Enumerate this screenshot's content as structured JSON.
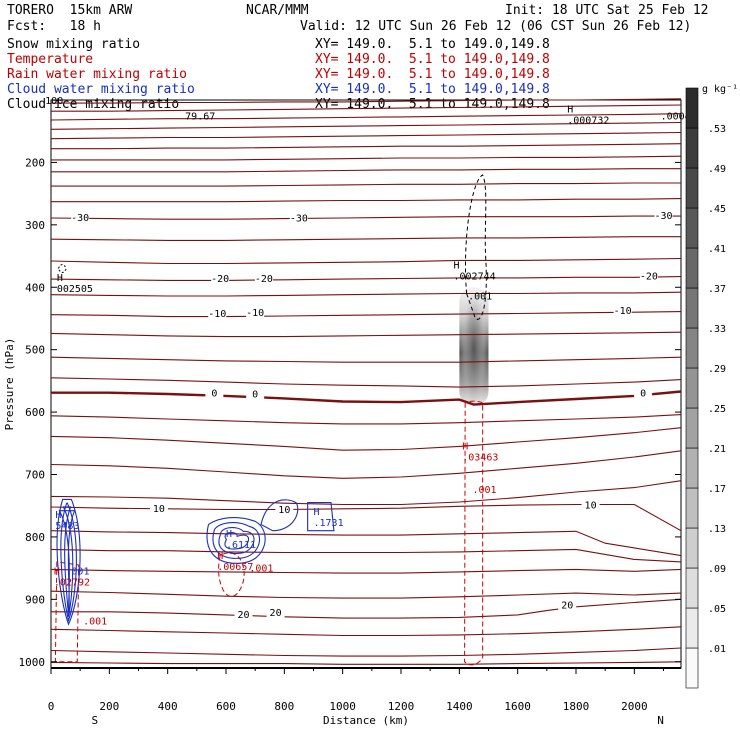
{
  "header": {
    "model": "TORERO  15km ARW",
    "center": "NCAR/MMM",
    "init": "Init: 18 UTC Sat 25 Feb 12",
    "fcst": "Fcst:   18 h",
    "valid": "Valid: 12 UTC Sun 26 Feb 12 (06 CST Sun 26 Feb 12)",
    "fields": [
      {
        "name": "Snow mixing ratio",
        "xy": "XY= 149.0.  5.1 to 149.0,149.8",
        "color": "#000000"
      },
      {
        "name": "Temperature",
        "xy": "XY= 149.0.  5.1 to 149.0,149.8",
        "color": "#c00000"
      },
      {
        "name": "Rain water mixing ratio",
        "xy": "XY= 149.0.  5.1 to 149.0,149.8",
        "color": "#c00000"
      },
      {
        "name": "Cloud water mixing ratio",
        "xy": "XY= 149.0.  5.1 to 149.0,149.8",
        "color": "#1a2fc0"
      },
      {
        "name": "Cloud ice mixing ratio",
        "xy": "XY= 149.0.  5.1 to 149.0,149.8",
        "color": "#000000"
      }
    ]
  },
  "chart_data": {
    "type": "contour-cross-section",
    "xlabel": "Distance (km)",
    "ylabel": "Pressure (hPa)",
    "xlim": [
      0,
      2160
    ],
    "ylim": [
      1010,
      100
    ],
    "x_ticks": [
      0,
      200,
      400,
      600,
      800,
      1000,
      1200,
      1400,
      1600,
      1800,
      2000
    ],
    "y_ticks": [
      200,
      300,
      400,
      500,
      600,
      700,
      800,
      900,
      1000
    ],
    "x_end_labels": {
      "left": "S",
      "right": "N"
    },
    "colorbar": {
      "units": "g kg⁻¹",
      "levels": [
        ".01",
        ".05",
        ".09",
        ".13",
        ".17",
        ".21",
        ".25",
        ".29",
        ".33",
        ".37",
        ".41",
        ".45",
        ".49",
        ".53"
      ]
    },
    "temperature_contours": [
      {
        "x": [
          0,
          200,
          400,
          600,
          800,
          1000,
          1200,
          1400,
          1600,
          1800,
          2000,
          2160
        ],
        "p": [
          105,
          105,
          104,
          104,
          103,
          103,
          102,
          101,
          100,
          100,
          99,
          98
        ]
      },
      {
        "x": [
          0,
          200,
          400,
          600,
          800,
          1000,
          1200,
          1400,
          1600,
          1800,
          2000,
          2160
        ],
        "p": [
          118,
          118,
          117,
          116,
          115,
          114,
          113,
          112,
          111,
          110,
          109,
          108
        ]
      },
      {
        "x": [
          0,
          200,
          400,
          600,
          800,
          1000,
          1200,
          1400,
          1600,
          1800,
          2000,
          2160
        ],
        "p": [
          132,
          131,
          130,
          130,
          129,
          128,
          127,
          126,
          125,
          124,
          123,
          122
        ]
      },
      {
        "x": [
          0,
          200,
          400,
          600,
          800,
          1000,
          1200,
          1400,
          1600,
          1800,
          2000,
          2160
        ],
        "p": [
          147,
          146,
          145,
          144,
          143,
          142,
          141,
          140,
          139,
          138,
          137,
          136
        ]
      },
      {
        "x": [
          0,
          200,
          400,
          600,
          800,
          1000,
          1200,
          1400,
          1600,
          1800,
          2000,
          2160
        ],
        "p": [
          162,
          161,
          160,
          160,
          159,
          158,
          157,
          156,
          155,
          154,
          153,
          152
        ]
      },
      {
        "x": [
          0,
          200,
          400,
          600,
          800,
          1000,
          1200,
          1400,
          1600,
          1800,
          2000,
          2160
        ],
        "p": [
          178,
          178,
          177,
          177,
          176,
          175,
          174,
          174,
          173,
          172,
          171,
          170
        ]
      },
      {
        "x": [
          0,
          200,
          400,
          600,
          800,
          1000,
          1200,
          1400,
          1600,
          1800,
          2000,
          2160
        ],
        "p": [
          196,
          196,
          196,
          196,
          195,
          194,
          193,
          193,
          192,
          192,
          191,
          190
        ]
      },
      {
        "x": [
          0,
          200,
          400,
          600,
          800,
          1000,
          1200,
          1400,
          1600,
          1800,
          2000,
          2160
        ],
        "p": [
          215,
          215,
          215,
          215,
          214,
          213,
          212,
          212,
          211,
          211,
          210,
          210
        ]
      },
      {
        "x": [
          0,
          200,
          400,
          600,
          800,
          1000,
          1200,
          1400,
          1600,
          1800,
          2000,
          2160
        ],
        "p": [
          238,
          238,
          238,
          238,
          237,
          236,
          235,
          235,
          234,
          234,
          233,
          233
        ]
      },
      {
        "x": [
          0,
          200,
          400,
          600,
          800,
          1000,
          1200,
          1400,
          1600,
          1800,
          2000,
          2160
        ],
        "p": [
          263,
          263,
          263,
          263,
          262,
          261,
          261,
          260,
          260,
          259,
          259,
          258
        ]
      },
      {
        "x": [
          0,
          200,
          400,
          600,
          800,
          1000,
          1200,
          1400,
          1600,
          1800,
          2000,
          2160
        ],
        "p": [
          289,
          290,
          291,
          291,
          290,
          289,
          288,
          287,
          287,
          287,
          286,
          286
        ],
        "label": "-30",
        "label_at": [
          [
            100,
            289
          ],
          [
            850,
            290
          ],
          [
            2100,
            286
          ]
        ]
      },
      {
        "x": [
          0,
          200,
          400,
          600,
          800,
          1000,
          1200,
          1400,
          1600,
          1800,
          2000,
          2160
        ],
        "p": [
          323,
          324,
          325,
          325,
          324,
          323,
          322,
          321,
          321,
          320,
          319,
          319
        ]
      },
      {
        "x": [
          0,
          200,
          400,
          600,
          800,
          1000,
          1200,
          1400,
          1600,
          1800,
          2000,
          2160
        ],
        "p": [
          358,
          360,
          362,
          362,
          361,
          360,
          359,
          357,
          357,
          356,
          355,
          354
        ]
      },
      {
        "x": [
          0,
          200,
          400,
          600,
          800,
          1000,
          1200,
          1400,
          1600,
          1800,
          2000,
          2160
        ],
        "p": [
          387,
          388,
          389,
          389,
          388,
          387,
          386,
          385,
          385,
          384,
          384,
          383
        ],
        "label": "-20",
        "label_at": [
          [
            580,
            387
          ],
          [
            730,
            387
          ],
          [
            2050,
            383
          ]
        ]
      },
      {
        "x": [
          0,
          200,
          400,
          600,
          800,
          1000,
          1200,
          1400,
          1600,
          1800,
          2000,
          2160
        ],
        "p": [
          412,
          413,
          414,
          414,
          413,
          412,
          411,
          410,
          410,
          409,
          409,
          408
        ]
      },
      {
        "x": [
          0,
          200,
          400,
          600,
          800,
          1000,
          1200,
          1400,
          1600,
          1800,
          2000,
          2160
        ],
        "p": [
          444,
          445,
          447,
          447,
          446,
          445,
          444,
          443,
          442,
          441,
          440,
          439
        ],
        "label": "-10",
        "label_at": [
          [
            570,
            443
          ],
          [
            700,
            441
          ],
          [
            1960,
            438
          ]
        ]
      },
      {
        "x": [
          0,
          200,
          400,
          600,
          800,
          1000,
          1200,
          1400,
          1600,
          1800,
          2000,
          2160
        ],
        "p": [
          474,
          476,
          478,
          479,
          479,
          478,
          477,
          476,
          475,
          474,
          473,
          472
        ]
      },
      {
        "x": [
          0,
          200,
          400,
          600,
          800,
          1000,
          1200,
          1400,
          1600,
          1800,
          2000,
          2160
        ],
        "p": [
          512,
          514,
          516,
          518,
          519,
          520,
          520,
          520,
          518,
          516,
          514,
          512
        ]
      },
      {
        "x": [
          0,
          200,
          400,
          600,
          800,
          1000,
          1200,
          1400,
          1600,
          1800,
          2000,
          2160
        ],
        "p": [
          545,
          547,
          549,
          552,
          555,
          557,
          558,
          560,
          558,
          555,
          552,
          548
        ]
      },
      {
        "x": [
          0,
          200,
          400,
          600,
          800,
          1000,
          1200,
          1400,
          1450,
          1600,
          1800,
          2000,
          2160
        ],
        "p": [
          569,
          569,
          571,
          574,
          578,
          583,
          584,
          580,
          588,
          584,
          579,
          574,
          567
        ],
        "label": "0",
        "label_at": [
          [
            560,
            570
          ],
          [
            700,
            572
          ],
          [
            2030,
            570
          ]
        ],
        "bold": true
      },
      {
        "x": [
          0,
          200,
          400,
          600,
          800,
          1000,
          1200,
          1400,
          1600,
          1800,
          2000,
          2160
        ],
        "p": [
          606,
          608,
          611,
          614,
          617,
          619,
          619,
          617,
          614,
          611,
          608,
          604
        ]
      },
      {
        "x": [
          0,
          200,
          400,
          600,
          800,
          1000,
          1200,
          1400,
          1600,
          1800,
          2000,
          2160
        ],
        "p": [
          639,
          641,
          645,
          650,
          655,
          661,
          660,
          655,
          648,
          641,
          633,
          625
        ]
      },
      {
        "x": [
          0,
          200,
          400,
          600,
          800,
          1000,
          1200,
          1400,
          1600,
          1800,
          2000,
          2160
        ],
        "p": [
          684,
          686,
          690,
          696,
          702,
          706,
          704,
          698,
          690,
          682,
          672,
          662
        ]
      },
      {
        "x": [
          0,
          200,
          400,
          600,
          800,
          1000,
          1200,
          1400,
          1600,
          1800,
          2000,
          2160
        ],
        "p": [
          735,
          736,
          738,
          742,
          746,
          748,
          748,
          744,
          737,
          728,
          721,
          710
        ]
      },
      {
        "x": [
          0,
          200,
          400,
          600,
          800,
          1000,
          1200,
          1400,
          1600,
          1800,
          2000,
          2160
        ],
        "p": [
          752,
          754,
          755,
          756,
          756,
          755,
          754,
          751,
          749,
          748,
          748,
          790
        ],
        "label": "10",
        "label_at": [
          [
            370,
            755
          ],
          [
            800,
            757
          ],
          [
            1850,
            750
          ]
        ]
      },
      {
        "x": [
          0,
          200,
          400,
          600,
          800,
          1000,
          1200,
          1400,
          1600,
          1800,
          1900,
          2160
        ],
        "p": [
          790,
          792,
          793,
          795,
          796,
          797,
          797,
          795,
          793,
          791,
          810,
          830
        ]
      },
      {
        "x": [
          0,
          200,
          400,
          600,
          800,
          1000,
          1200,
          1400,
          1600,
          1800,
          2000,
          2160
        ],
        "p": [
          820,
          822,
          822,
          824,
          825,
          825,
          825,
          824,
          822,
          820,
          836,
          840
        ]
      },
      {
        "x": [
          0,
          200,
          400,
          600,
          800,
          1000,
          1200,
          1400,
          1600,
          1800,
          2000,
          2160
        ],
        "p": [
          852,
          854,
          855,
          856,
          857,
          858,
          858,
          856,
          854,
          852,
          855,
          852
        ]
      },
      {
        "x": [
          0,
          200,
          400,
          600,
          800,
          1000,
          1200,
          1400,
          1600,
          1800,
          2000,
          2160
        ],
        "p": [
          887,
          889,
          892,
          895,
          897,
          898,
          898,
          896,
          893,
          890,
          893,
          890
        ]
      },
      {
        "x": [
          0,
          200,
          400,
          600,
          800,
          1000,
          1200,
          1400,
          1600,
          1700,
          1800,
          2000,
          2160
        ],
        "p": [
          920,
          920,
          922,
          925,
          928,
          930,
          930,
          929,
          925,
          918,
          912,
          905,
          900
        ],
        "label": "20",
        "label_at": [
          [
            660,
            925
          ],
          [
            770,
            922
          ],
          [
            1770,
            910
          ]
        ]
      },
      {
        "x": [
          0,
          200,
          400,
          600,
          800,
          1000,
          1200,
          1400,
          1600,
          1800,
          2000,
          2160
        ],
        "p": [
          948,
          950,
          952,
          954,
          956,
          958,
          958,
          957,
          955,
          952,
          948,
          944
        ]
      },
      {
        "x": [
          0,
          200,
          400,
          600,
          800,
          1000,
          1200,
          1400,
          1600,
          1800,
          2000,
          2160
        ],
        "p": [
          982,
          984,
          986,
          988,
          990,
          991,
          991,
          990,
          988,
          985,
          982,
          978
        ]
      },
      {
        "x": [
          0,
          200,
          400,
          600,
          800,
          1000,
          1200,
          1400,
          1600,
          1800,
          2000,
          2160
        ],
        "p": [
          1001,
          1002,
          1003,
          1003,
          1003,
          1004,
          1004,
          1004,
          1003,
          1002,
          1001,
          1000
        ]
      }
    ],
    "rain_contour_labels": [
      {
        "text": ".001",
        "x": 1445,
        "p": 730
      },
      {
        "text": ".001",
        "x": 680,
        "p": 855
      },
      {
        "text": ".001",
        "x": 110,
        "p": 940
      }
    ],
    "snow_contour_labels": [
      {
        "text": ".001",
        "x": 1430,
        "p": 420
      }
    ],
    "maxima": [
      {
        "text": "H",
        "sub": "002505",
        "x": 20,
        "p": 390,
        "color": "#000000"
      },
      {
        "text": "H",
        "sub": ".002744",
        "x": 1380,
        "p": 370,
        "color": "#000000"
      },
      {
        "text": "H",
        "sub": ".000732",
        "x": 1770,
        "p": 120,
        "color": "#000000"
      },
      {
        "text": "H",
        "sub": ".03463",
        "x": 1410,
        "p": 660,
        "color": "#c00000"
      },
      {
        "text": "H",
        "sub": "5483",
        "x": 15,
        "p": 770,
        "color": "#1a2fc0"
      },
      {
        "text": "H",
        "sub": ".6111",
        "x": 600,
        "p": 800,
        "color": "#1a2fc0"
      },
      {
        "text": "H",
        "sub": ".1731",
        "x": 900,
        "p": 765,
        "color": "#1a2fc0"
      },
      {
        "text": "H",
        "sub": ".02792",
        "x": 10,
        "p": 860,
        "color": "#c00000"
      },
      {
        "text": "H",
        "sub": ".00657",
        "x": 570,
        "p": 835,
        "color": "#c00000"
      },
      {
        "text": "001",
        "sub": "",
        "x": 70,
        "p": 860,
        "color": "#1a2fc0"
      }
    ],
    "top_labels": [
      {
        "text": "79.67",
        "x": 460,
        "p": 125
      },
      {
        "text": ".0004",
        "x": 2090,
        "p": 125
      },
      {
        "text": "100",
        "x": -20,
        "p": 100
      }
    ]
  }
}
